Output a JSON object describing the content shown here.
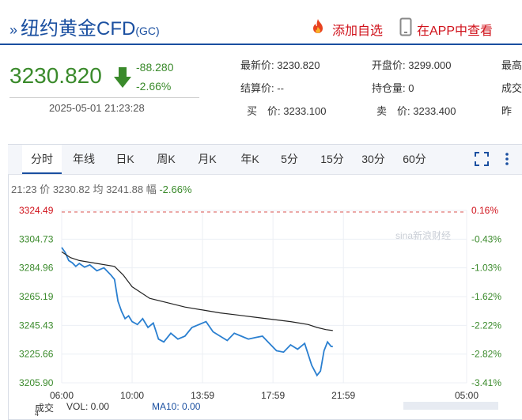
{
  "header": {
    "title": "纽约黄金CFD",
    "code": "(GC)",
    "add_watch_label": "添加自选",
    "app_label": "在APP中查看",
    "chevron": "»"
  },
  "quote": {
    "price": "3230.820",
    "change": "-88.280",
    "change_pct": "-2.66%",
    "datetime": "2025-05-01 21:23:28",
    "direction": "down"
  },
  "stats": [
    {
      "label": "最新价:",
      "value": "3230.820"
    },
    {
      "label": "结算价:",
      "value": "--"
    },
    {
      "label": "买　价:",
      "value": "3233.100"
    },
    {
      "label": "开盘价:",
      "value": "3299.000"
    },
    {
      "label": "持仓量:",
      "value": "0"
    },
    {
      "label": "卖　价:",
      "value": "3233.400"
    },
    {
      "label": "最高",
      "value": ""
    },
    {
      "label": "成交",
      "value": ""
    },
    {
      "label": "昨",
      "value": ""
    }
  ],
  "tabs": [
    "分时",
    "年线",
    "日K",
    "周K",
    "月K",
    "年K",
    "5分",
    "15分",
    "30分",
    "60分"
  ],
  "active_tab": "分时",
  "info": {
    "time": "21:23",
    "price_label": "价",
    "price": "3230.82",
    "avg_label": "均",
    "avg": "3241.88",
    "amp_label": "幅",
    "amp": "-2.66%"
  },
  "chart_data": {
    "type": "line",
    "y_left_ticks": [
      "3324.49",
      "3304.73",
      "3284.96",
      "3265.19",
      "3245.43",
      "3225.66",
      "3205.90"
    ],
    "y_right_ticks": [
      "0.16%",
      "-0.43%",
      "-1.03%",
      "-1.62%",
      "-2.22%",
      "-2.82%",
      "-3.41%"
    ],
    "x_ticks": [
      "06:00",
      "10:00",
      "13:59",
      "17:59",
      "21:59",
      "05:00"
    ],
    "ylim": [
      3205.9,
      3324.49
    ],
    "reference_price": 3319.1,
    "series": [
      {
        "name": "价",
        "color": "#2a7fd0",
        "x": [
          6.0,
          6.2,
          6.4,
          6.6,
          6.8,
          7.0,
          7.3,
          7.6,
          8.0,
          8.4,
          8.8,
          9.0,
          9.2,
          9.4,
          9.6,
          9.8,
          10.0,
          10.3,
          10.6,
          10.9,
          11.2,
          11.5,
          11.8,
          12.2,
          12.6,
          13.0,
          13.4,
          13.8,
          14.2,
          14.6,
          15.0,
          15.4,
          15.8,
          16.2,
          16.6,
          17.0,
          17.4,
          17.8,
          18.2,
          18.6,
          19.0,
          19.4,
          19.8,
          20.2,
          20.5,
          20.7,
          20.9,
          21.1,
          21.3,
          21.4
        ],
        "values": [
          3299.0,
          3295.5,
          3290.0,
          3288.5,
          3286.0,
          3288.0,
          3285.5,
          3287.0,
          3283.0,
          3285.0,
          3280.0,
          3277.0,
          3262.0,
          3255.0,
          3250.0,
          3252.0,
          3248.0,
          3246.0,
          3250.0,
          3244.0,
          3247.0,
          3236.0,
          3234.0,
          3240.0,
          3236.0,
          3238.0,
          3244.0,
          3246.0,
          3248.0,
          3241.0,
          3238.0,
          3235.0,
          3240.0,
          3238.0,
          3236.0,
          3237.0,
          3238.0,
          3233.0,
          3228.0,
          3227.0,
          3232.0,
          3229.0,
          3233.0,
          3218.0,
          3211.0,
          3214.0,
          3228.0,
          3234.0,
          3231.0,
          3230.82
        ]
      },
      {
        "name": "均",
        "color": "#222222",
        "x": [
          6.0,
          6.5,
          7.0,
          8.0,
          9.0,
          9.5,
          10.0,
          11.0,
          12.0,
          13.0,
          14.0,
          15.0,
          16.0,
          17.0,
          18.0,
          19.0,
          20.0,
          20.5,
          21.0,
          21.4
        ],
        "values": [
          3296.0,
          3292.0,
          3290.0,
          3288.0,
          3286.0,
          3280.0,
          3272.0,
          3264.0,
          3261.0,
          3258.0,
          3256.0,
          3254.0,
          3252.5,
          3251.0,
          3249.5,
          3248.0,
          3246.0,
          3244.0,
          3242.5,
          3241.88
        ]
      }
    ],
    "watermark": "sina新浪财经"
  },
  "footer": {
    "vol_label": "成交",
    "vol_sub": "4",
    "vol_text": "VOL: 0.00",
    "ma_text": "MA10: 0.00"
  },
  "colors": {
    "brand": "#1a4fa0",
    "down": "#3a8a2b",
    "up": "#d0121b",
    "price_line": "#2a7fd0",
    "avg_line": "#222222",
    "ref_line": "#d9534f"
  }
}
